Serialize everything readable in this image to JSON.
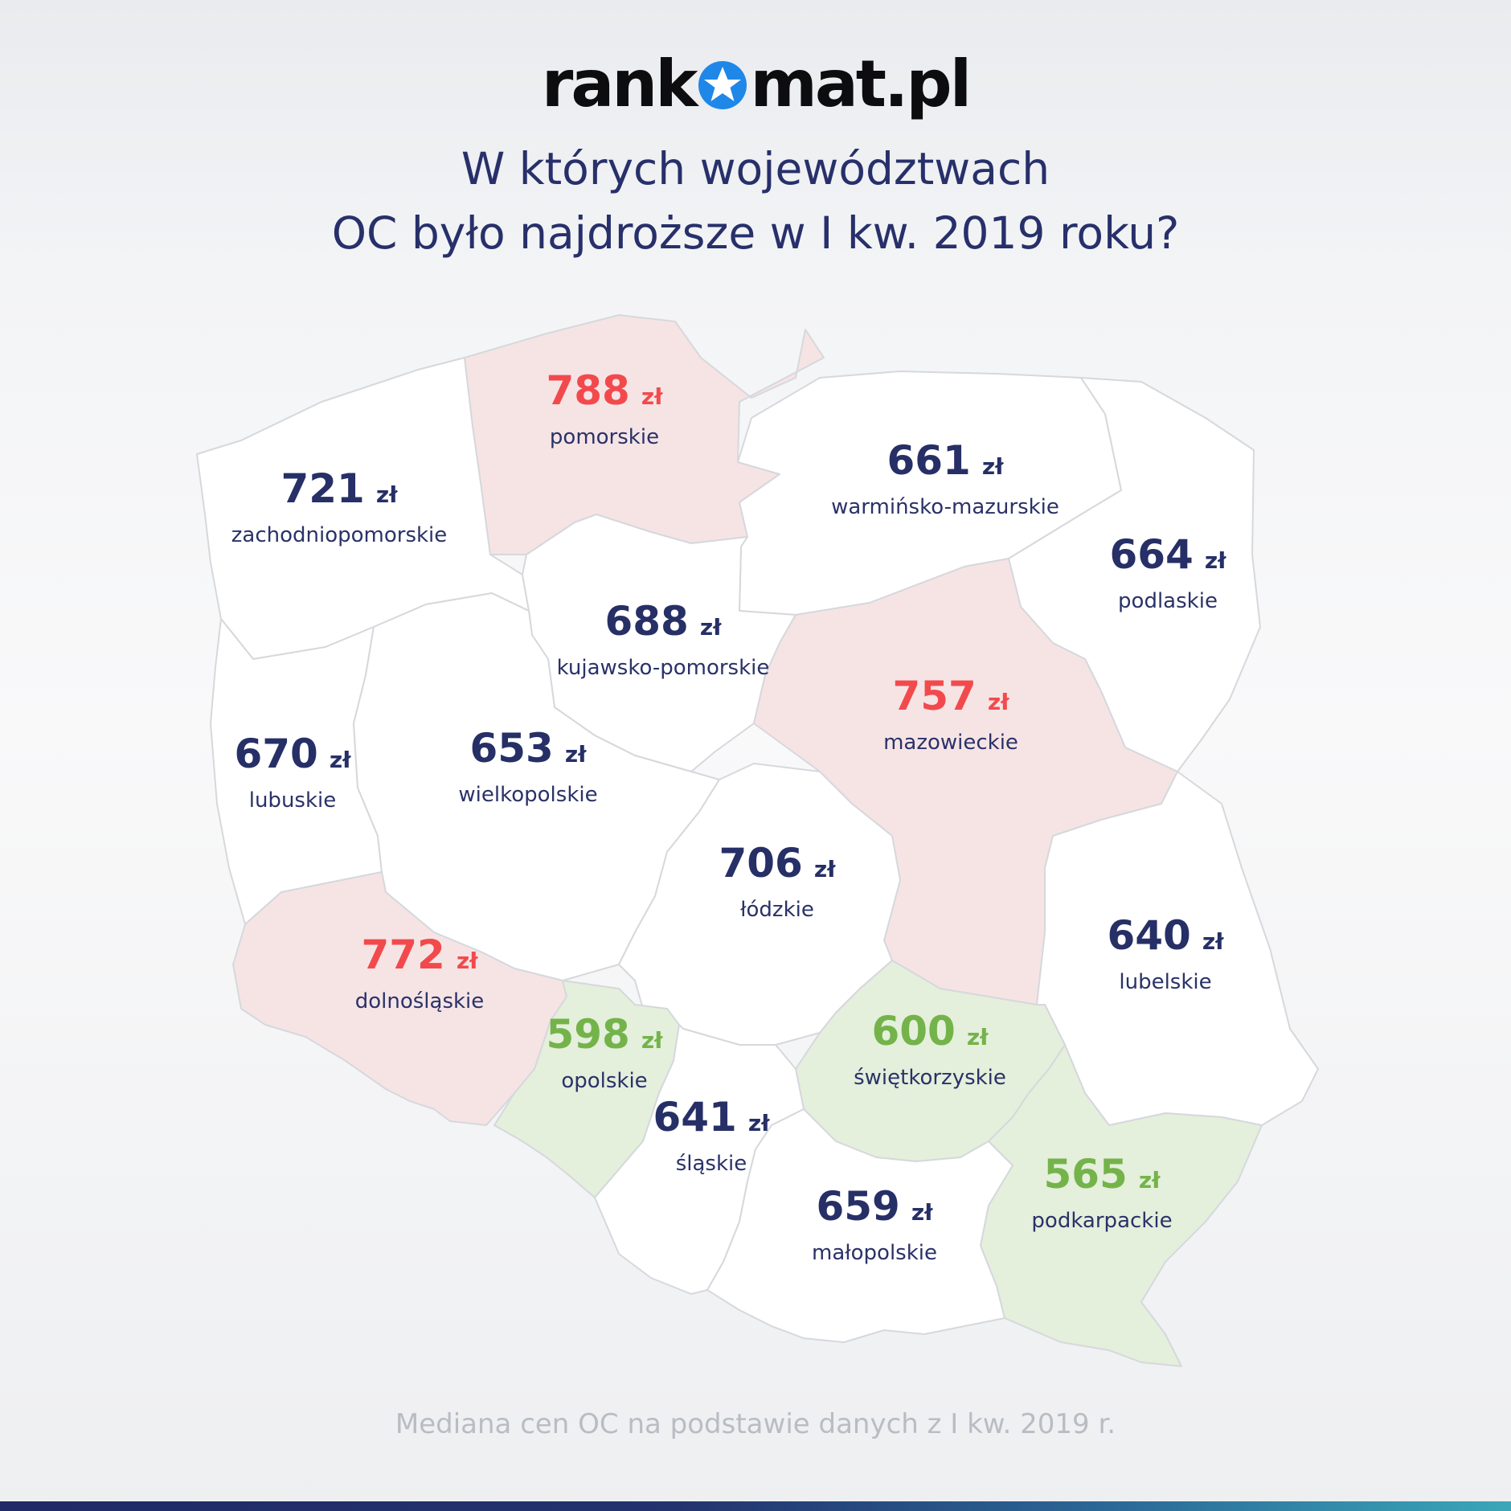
{
  "brand": {
    "prefix": "rank",
    "suffix": "mat.pl",
    "logo_icon": "star-icon"
  },
  "title": {
    "line1": "W których województwach",
    "line2": "OC było najdroższe w I kw. 2019 roku?"
  },
  "unit": "zł",
  "regions": [
    {
      "id": "zachodniopomorskie",
      "name": "zachodniopomorskie",
      "value": "721",
      "category": "neutral"
    },
    {
      "id": "pomorskie",
      "name": "pomorskie",
      "value": "788",
      "category": "high"
    },
    {
      "id": "warminsko-mazurskie",
      "name": "warmińsko-mazurskie",
      "value": "661",
      "category": "neutral"
    },
    {
      "id": "podlaskie",
      "name": "podlaskie",
      "value": "664",
      "category": "neutral"
    },
    {
      "id": "kujawsko-pomorskie",
      "name": "kujawsko-pomorskie",
      "value": "688",
      "category": "neutral"
    },
    {
      "id": "mazowieckie",
      "name": "mazowieckie",
      "value": "757",
      "category": "high"
    },
    {
      "id": "lubuskie",
      "name": "lubuskie",
      "value": "670",
      "category": "neutral"
    },
    {
      "id": "wielkopolskie",
      "name": "wielkopolskie",
      "value": "653",
      "category": "neutral"
    },
    {
      "id": "lodzkie",
      "name": "łódzkie",
      "value": "706",
      "category": "neutral"
    },
    {
      "id": "lubelskie",
      "name": "lubelskie",
      "value": "640",
      "category": "neutral"
    },
    {
      "id": "dolnoslaskie",
      "name": "dolnośląskie",
      "value": "772",
      "category": "high"
    },
    {
      "id": "opolskie",
      "name": "opolskie",
      "value": "598",
      "category": "low"
    },
    {
      "id": "swietokrzyskie",
      "name": "świętkorzyskie",
      "value": "600",
      "category": "low"
    },
    {
      "id": "slaskie",
      "name": "śląskie",
      "value": "641",
      "category": "neutral"
    },
    {
      "id": "malopolskie",
      "name": "małopolskie",
      "value": "659",
      "category": "neutral"
    },
    {
      "id": "podkarpackie",
      "name": "podkarpackie",
      "value": "565",
      "category": "low"
    }
  ],
  "colors": {
    "neutral_fill": "#ffffff",
    "high_fill": "#f6e4e5",
    "low_fill": "#e4efdc",
    "neutral_text": "#262f66",
    "high_text": "#f24a4c",
    "low_text": "#74b34a",
    "border": "#d6d8dc"
  },
  "footnote": "Mediana cen OC na podstawie danych z I kw. 2019 r."
}
